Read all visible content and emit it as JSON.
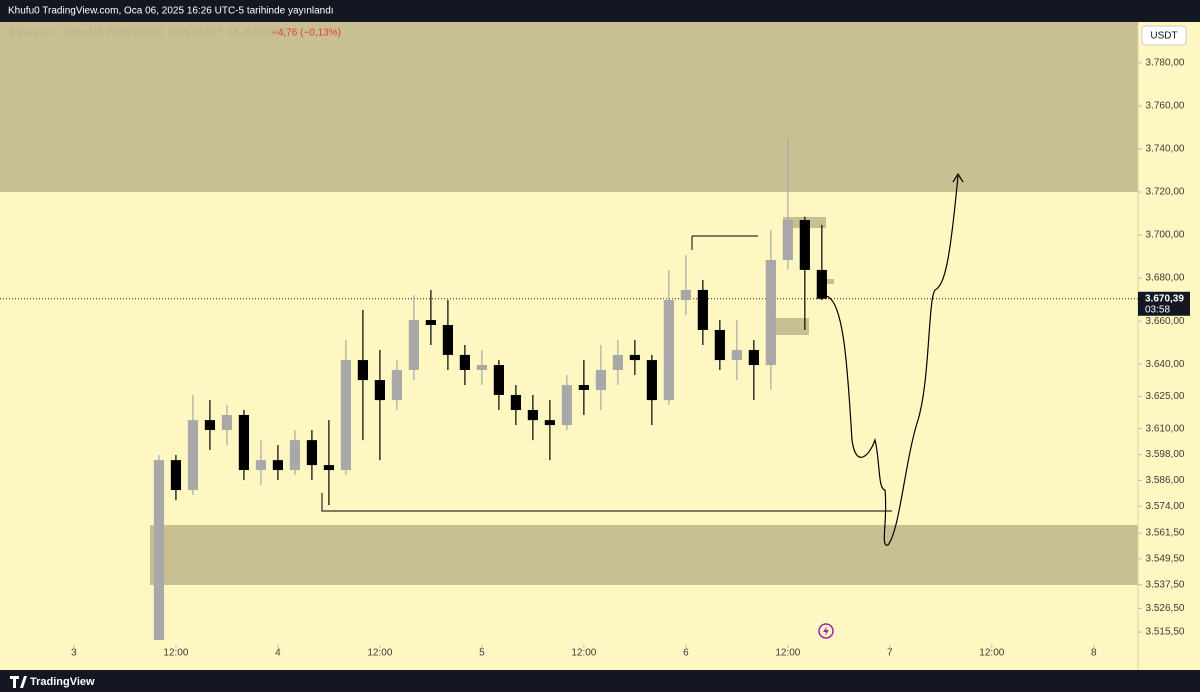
{
  "chart_data": {
    "type": "candlestick",
    "title": "Khufu0 TradingView.com, Oca 06, 2025 16:26 UTC-5 tarihinde yayınlandı",
    "series_name": "Ethereum / TetherUS PERPETUAL CONTRACT, 15, BINANCE",
    "change_label": "−4,76 (−0,13%)",
    "currency": "USDT",
    "brand": "TradingView",
    "up_color": "#a8a8a8",
    "down_color": "#000000",
    "x": [
      10,
      12,
      14,
      16,
      18,
      20,
      22,
      24,
      26,
      28,
      30,
      32,
      34,
      36,
      38,
      40,
      42,
      44,
      46,
      48,
      50,
      52,
      54,
      56,
      58,
      60,
      62,
      64,
      66,
      68,
      70,
      72,
      74,
      76,
      78,
      80,
      82,
      84,
      86,
      88
    ],
    "open": [
      3511.8,
      3595.4,
      3581.5,
      3614.0,
      3609.4,
      3616.4,
      3590.8,
      3595.4,
      3590.8,
      3604.7,
      3593.1,
      3590.8,
      3641.9,
      3632.6,
      3623.3,
      3637.3,
      3660.5,
      3658.2,
      3644.3,
      3637.3,
      3639.6,
      3625.7,
      3618.7,
      3614.0,
      3611.7,
      3630.3,
      3628.0,
      3637.3,
      3644.3,
      3641.9,
      3623.3,
      3669.8,
      3674.5,
      3655.9,
      3641.9,
      3646.6,
      3639.6,
      3688.4,
      3707.0,
      3683.8
    ],
    "high": [
      3597.8,
      3597.8,
      3625.7,
      3623.3,
      3621.0,
      3618.7,
      3604.7,
      3602.4,
      3609.4,
      3609.4,
      3614.0,
      3651.2,
      3665.2,
      3646.6,
      3641.9,
      3672.1,
      3674.5,
      3669.8,
      3648.9,
      3646.6,
      3641.9,
      3630.3,
      3625.7,
      3623.3,
      3635.0,
      3641.9,
      3648.9,
      3651.2,
      3651.2,
      3644.3,
      3683.8,
      3690.7,
      3679.1,
      3660.5,
      3660.5,
      3651.2,
      3702.4,
      3745.1,
      3708.5,
      3704.7
    ],
    "low": [
      3511.8,
      3576.8,
      3579.2,
      3600.1,
      3602.4,
      3586.1,
      3583.8,
      3586.1,
      3588.5,
      3586.1,
      3574.5,
      3588.5,
      3604.7,
      3595.4,
      3618.7,
      3632.6,
      3648.9,
      3637.3,
      3630.3,
      3630.3,
      3618.7,
      3611.7,
      3604.7,
      3595.4,
      3609.4,
      3616.4,
      3618.7,
      3630.3,
      3635.0,
      3611.7,
      3621.0,
      3662.8,
      3648.9,
      3637.3,
      3632.6,
      3623.3,
      3628.0,
      3683.8,
      3655.9,
      3669.8
    ],
    "close": [
      3595.4,
      3581.5,
      3614.0,
      3609.4,
      3616.4,
      3590.8,
      3595.4,
      3590.8,
      3604.7,
      3593.1,
      3590.8,
      3641.9,
      3632.6,
      3623.3,
      3637.3,
      3660.5,
      3658.2,
      3644.3,
      3637.3,
      3639.6,
      3625.7,
      3618.7,
      3614.0,
      3611.7,
      3630.3,
      3628.0,
      3637.3,
      3644.3,
      3641.9,
      3623.3,
      3669.8,
      3674.5,
      3655.9,
      3641.9,
      3646.6,
      3639.6,
      3688.4,
      3707.0,
      3683.8,
      3670.4
    ],
    "last_price": {
      "value": 3670.39,
      "label": "3.670,39"
    },
    "countdown": "03:58",
    "xlim": [
      -8.7,
      125.2
    ],
    "ylim": [
      3509.5,
      3799.0
    ],
    "xticks": [
      {
        "value": 0,
        "label": "3"
      },
      {
        "value": 12,
        "label": "12:00"
      },
      {
        "value": 24,
        "label": "4"
      },
      {
        "value": 36,
        "label": "12:00"
      },
      {
        "value": 48,
        "label": "5"
      },
      {
        "value": 60,
        "label": "12:00"
      },
      {
        "value": 72,
        "label": "6"
      },
      {
        "value": 84,
        "label": "12:00"
      },
      {
        "value": 96,
        "label": "7"
      },
      {
        "value": 108,
        "label": "12:00"
      },
      {
        "value": 120,
        "label": "8"
      }
    ],
    "yticks": [
      {
        "value": 3780,
        "label": "3.780,00"
      },
      {
        "value": 3760,
        "label": "3.760,00"
      },
      {
        "value": 3740,
        "label": "3.740,00"
      },
      {
        "value": 3720,
        "label": "3.720,00"
      },
      {
        "value": 3700,
        "label": "3.700,00"
      },
      {
        "value": 3680,
        "label": "3.680,00"
      },
      {
        "value": 3660,
        "label": "3.660,00"
      },
      {
        "value": 3640,
        "label": "3.640,00"
      },
      {
        "value": 3625,
        "label": "3.625,00"
      },
      {
        "value": 3610,
        "label": "3.610,00"
      },
      {
        "value": 3598,
        "label": "3.598,00"
      },
      {
        "value": 3586,
        "label": "3.586,00"
      },
      {
        "value": 3574,
        "label": "3.574,00"
      },
      {
        "value": 3561.5,
        "label": "3.561,50"
      },
      {
        "value": 3549.5,
        "label": "3.549,50"
      },
      {
        "value": 3537.5,
        "label": "3.537,50"
      },
      {
        "value": 3526.5,
        "label": "3.526,50"
      },
      {
        "value": 3515.5,
        "label": "3.515,50"
      }
    ]
  }
}
